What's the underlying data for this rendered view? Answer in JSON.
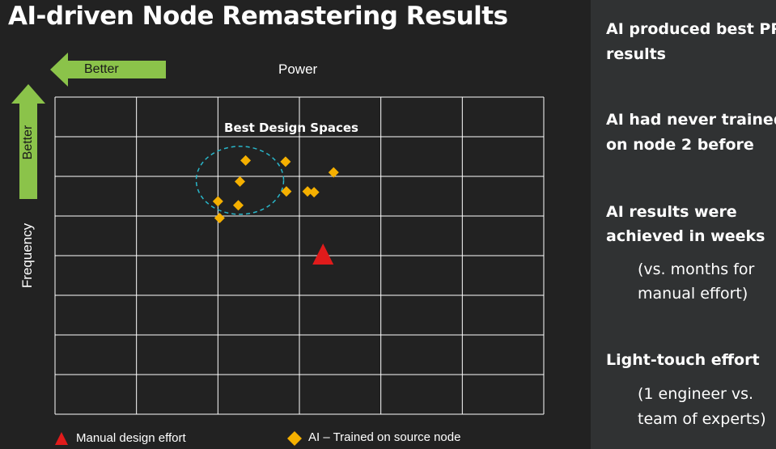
{
  "title": "AI-driven Node Remastering Results",
  "colors": {
    "background": "#222222",
    "panel": "#303233",
    "arrow_green": "#8bc34a",
    "diamond_fill": "#f5b000",
    "triangle_fill": "#e01b1b",
    "circle_stroke": "#29b6c9",
    "grid": "#ffffff"
  },
  "arrows": {
    "horizontal_label": "Better",
    "vertical_label": "Better"
  },
  "side_panel": {
    "points": [
      {
        "title_line1": "AI produced best PPA",
        "title_line2": "results"
      },
      {
        "title_line1": "AI had never trained",
        "title_line2": "on node 2 before"
      },
      {
        "title_line1": "AI results were",
        "title_line2": "achieved in weeks",
        "sub_line1": "(vs. months for",
        "sub_line2": "manual effort)"
      },
      {
        "title_line1": "Light-touch effort",
        "sub_line1": "(1 engineer vs.",
        "sub_line2": "team of experts)"
      }
    ]
  },
  "chart_data": {
    "type": "scatter",
    "xlabel": "Power",
    "ylabel": "Frequency",
    "grid": true,
    "xlim": [
      0,
      6
    ],
    "ylim": [
      0,
      8
    ],
    "annotation": "Best Design Spaces",
    "legend_placement": "bottom",
    "series": [
      {
        "name": "Manual design effort",
        "marker": "triangle",
        "points": [
          [
            3.29,
            4.02
          ]
        ]
      },
      {
        "name": "AI – Trained on source node",
        "marker": "diamond",
        "points": [
          [
            2.34,
            6.4
          ],
          [
            2.27,
            5.87
          ],
          [
            2.0,
            5.37
          ],
          [
            2.25,
            5.27
          ],
          [
            2.02,
            4.95
          ],
          [
            2.83,
            6.37
          ],
          [
            2.84,
            5.62
          ],
          [
            3.1,
            5.62
          ],
          [
            3.18,
            5.6
          ],
          [
            3.42,
            6.1
          ]
        ]
      }
    ]
  }
}
